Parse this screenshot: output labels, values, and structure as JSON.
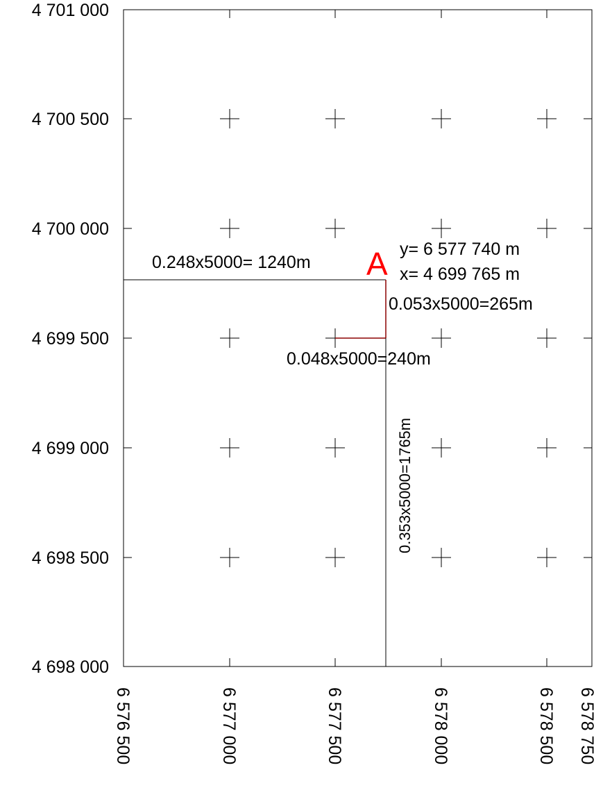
{
  "y_axis_labels": [
    "4 701 000",
    "4 700 500",
    "4 700 000",
    "4 699 500",
    "4 699 000",
    "4 698 500",
    "4 698 000"
  ],
  "x_axis_labels": [
    "6 576 500",
    "6 577 000",
    "6 577 500",
    "6 578 000",
    "6 578 500",
    "6 578 750"
  ],
  "point": {
    "label": "A",
    "y_text": "y= 6 577 740 m",
    "x_text": "x= 4 699 765 m",
    "color": "#ff0000"
  },
  "measurements": {
    "horizontal_to_frame": "0.248x5000= 1240m",
    "vertical_to_grid": "0.053x5000=265m",
    "horizontal_to_grid": "0.048x5000=240m",
    "vertical_to_frame": "0.353x5000=1765m"
  },
  "colors": {
    "frame": "#000000",
    "measure_line": "#8b0000"
  }
}
